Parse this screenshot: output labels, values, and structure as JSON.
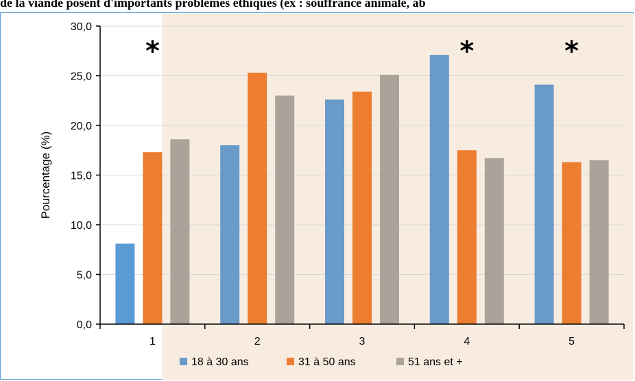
{
  "title": "de la viande posent d'importants problèmes éthiques (ex : souffrance animale, ab",
  "colors": {
    "series": [
      "#6a9ac8",
      "#ed7d31",
      "#aaa39a"
    ],
    "first_bar": "#5b9bd5",
    "highlight_bg": "#f8ece1",
    "grid": "#d9d9d9",
    "border": "#5b9bd5"
  },
  "chart_data": {
    "type": "bar",
    "title": "de la viande posent d'importants problèmes éthiques (ex : souffrance animale, ab",
    "ylabel": "Pourcentage (%)",
    "xlabel": "",
    "ylim": [
      0,
      30
    ],
    "yticks": [
      "0,0",
      "5,0",
      "10,0",
      "15,0",
      "20,0",
      "25,0",
      "30,0"
    ],
    "categories": [
      "1",
      "2",
      "3",
      "4",
      "5"
    ],
    "series": [
      {
        "name": "18 à 30 ans",
        "values": [
          8.1,
          18.0,
          22.6,
          27.1,
          24.1
        ]
      },
      {
        "name": "31 à 50 ans",
        "values": [
          17.3,
          25.3,
          23.4,
          17.5,
          16.3
        ]
      },
      {
        "name": "51 ans et +",
        "values": [
          18.6,
          23.0,
          25.1,
          16.7,
          16.5
        ]
      }
    ],
    "significant_marker": "*",
    "significant_categories": [
      "1",
      "4",
      "5"
    ],
    "legend_position": "bottom",
    "grid": true
  }
}
